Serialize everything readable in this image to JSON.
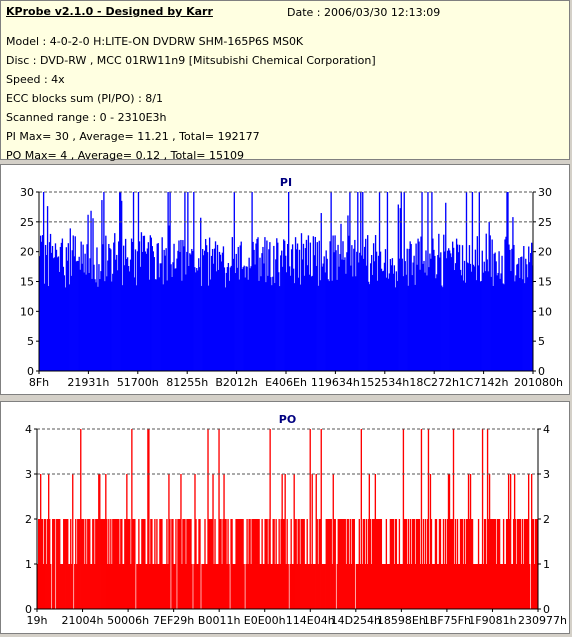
{
  "info": {
    "title": "KProbe v2.1.0 - Designed by Karr",
    "date": "Date : 2006/03/30 12:13:09",
    "lines": [
      "Model : 4-0-2-0 H:LITE-ON DVDRW SHM-165P6S MS0K",
      "Disc : DVD-RW , MCC 01RW11n9 [Mitsubishi Chemical Corporation]",
      "Speed : 4x",
      "ECC blocks sum (PI/PO) : 8/1",
      "Scanned range : 0 - 2310E3h",
      "PI Max= 30 , Average= 11.21 , Total= 192177",
      "PO Max= 4 , Average= 0.12 , Total= 15109"
    ]
  },
  "chart_data": [
    {
      "type": "bar",
      "title": "PI",
      "color": "#0000ff",
      "ylim": [
        0,
        30
      ],
      "yticks": [
        0,
        5,
        10,
        15,
        20,
        25,
        30
      ],
      "dashed_gridlines": [
        25,
        30
      ],
      "xticks": [
        "8Fh",
        "21931h",
        "51700h",
        "81255h",
        "B2012h",
        "E406Eh",
        "119634h",
        "152534h",
        "18C272h",
        "1C7142h",
        "201080h"
      ],
      "bar_count": 500,
      "max": 30,
      "average": 11.21,
      "typical_range": [
        14,
        30
      ]
    },
    {
      "type": "bar",
      "title": "PO",
      "color": "#ff0000",
      "ylim": [
        0,
        4
      ],
      "yticks": [
        0,
        1,
        2,
        3,
        4
      ],
      "dashed_gridlines": [
        3,
        4
      ],
      "xticks": [
        "19h",
        "21004h",
        "50006h",
        "7EF29h",
        "B0011h",
        "E0E00h",
        "114E04h",
        "14D254h",
        "18598Eh",
        "1BF75Fh",
        "1F9081h",
        "230977h"
      ],
      "bar_count": 500,
      "max": 4,
      "average": 0.12,
      "typical_range": [
        1,
        2
      ]
    }
  ]
}
